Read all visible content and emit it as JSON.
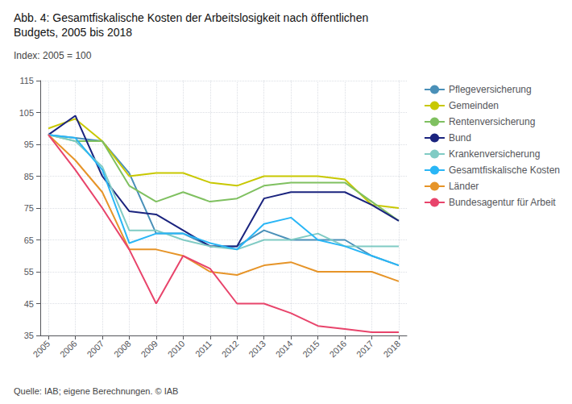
{
  "chart_data": {
    "type": "line",
    "title": "Abb. 4: Gesamtfiskalische Kosten der Arbeitslosigkeit nach öffentlichen\nBudgets, 2005 bis 2018",
    "subtitle": "Index: 2005 = 100",
    "annotations": [
      "Quelle: IAB; eigene Berechnungen. © IAB"
    ],
    "x": [
      2005,
      2006,
      2007,
      2008,
      2009,
      2010,
      2011,
      2012,
      2013,
      2014,
      2015,
      2016,
      2017,
      2018
    ],
    "xlim": [
      2004.7,
      2018.3
    ],
    "xticks": [
      2005,
      2006,
      2007,
      2008,
      2009,
      2010,
      2011,
      2012,
      2013,
      2014,
      2015,
      2016,
      2017,
      2018
    ],
    "ylim": [
      35,
      115
    ],
    "yticks": [
      35,
      45,
      55,
      65,
      75,
      85,
      95,
      105,
      115
    ],
    "grid": true,
    "legend": "right",
    "series": [
      {
        "name": "Pflegeversicherung",
        "color": "#4a90b8",
        "values": [
          98,
          97,
          96,
          86,
          67,
          67,
          63,
          63,
          68,
          65,
          65,
          65,
          60,
          57
        ]
      },
      {
        "name": "Gemeinden",
        "color": "#c8c800",
        "values": [
          100,
          103,
          96,
          85,
          86,
          86,
          83,
          82,
          85,
          85,
          85,
          84,
          76,
          75
        ]
      },
      {
        "name": "Rentenversicherung",
        "color": "#7fc060",
        "values": [
          98,
          96,
          96,
          82,
          77,
          80,
          77,
          78,
          82,
          83,
          83,
          83,
          77,
          71
        ]
      },
      {
        "name": "Bund",
        "color": "#1a237e",
        "values": [
          98,
          104,
          85,
          74,
          73,
          68,
          63,
          63,
          78,
          80,
          80,
          80,
          76,
          71
        ]
      },
      {
        "name": "Krankenversicherung",
        "color": "#80cbc4",
        "values": [
          98,
          96,
          88,
          68,
          68,
          65,
          63,
          62,
          65,
          65,
          67,
          63,
          63,
          63
        ]
      },
      {
        "name": "Gesamtfiskalische Kosten",
        "color": "#29b6f6",
        "values": [
          98,
          97,
          87,
          64,
          67,
          67,
          64,
          62,
          70,
          72,
          65,
          63,
          60,
          57
        ]
      },
      {
        "name": "Länder",
        "color": "#e69428",
        "values": [
          98,
          90,
          80,
          62,
          62,
          60,
          55,
          54,
          57,
          58,
          55,
          55,
          55,
          52
        ]
      },
      {
        "name": "Bundesagentur für Arbeit",
        "color": "#e8446b",
        "values": [
          98,
          87,
          75,
          62,
          45,
          60,
          56,
          45,
          45,
          42,
          38,
          37,
          36,
          36
        ]
      }
    ]
  }
}
